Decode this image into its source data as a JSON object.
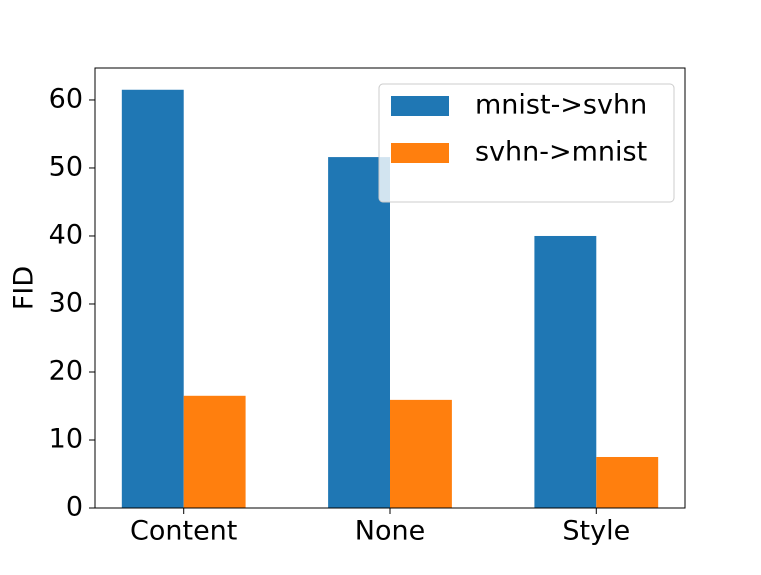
{
  "chart_data": {
    "type": "bar",
    "categories": [
      "Content",
      "None",
      "Style"
    ],
    "series": [
      {
        "name": "mnist->svhn",
        "color": "#1f77b4",
        "values": [
          61.5,
          51.6,
          40.0
        ]
      },
      {
        "name": "svhn->mnist",
        "color": "#ff7f0e",
        "values": [
          16.5,
          15.9,
          7.5
        ]
      }
    ],
    "y_label": "FID",
    "ylim": [
      0,
      64.7
    ],
    "yticks": [
      0,
      10,
      20,
      30,
      40,
      50,
      60
    ],
    "legend": "upper right"
  }
}
